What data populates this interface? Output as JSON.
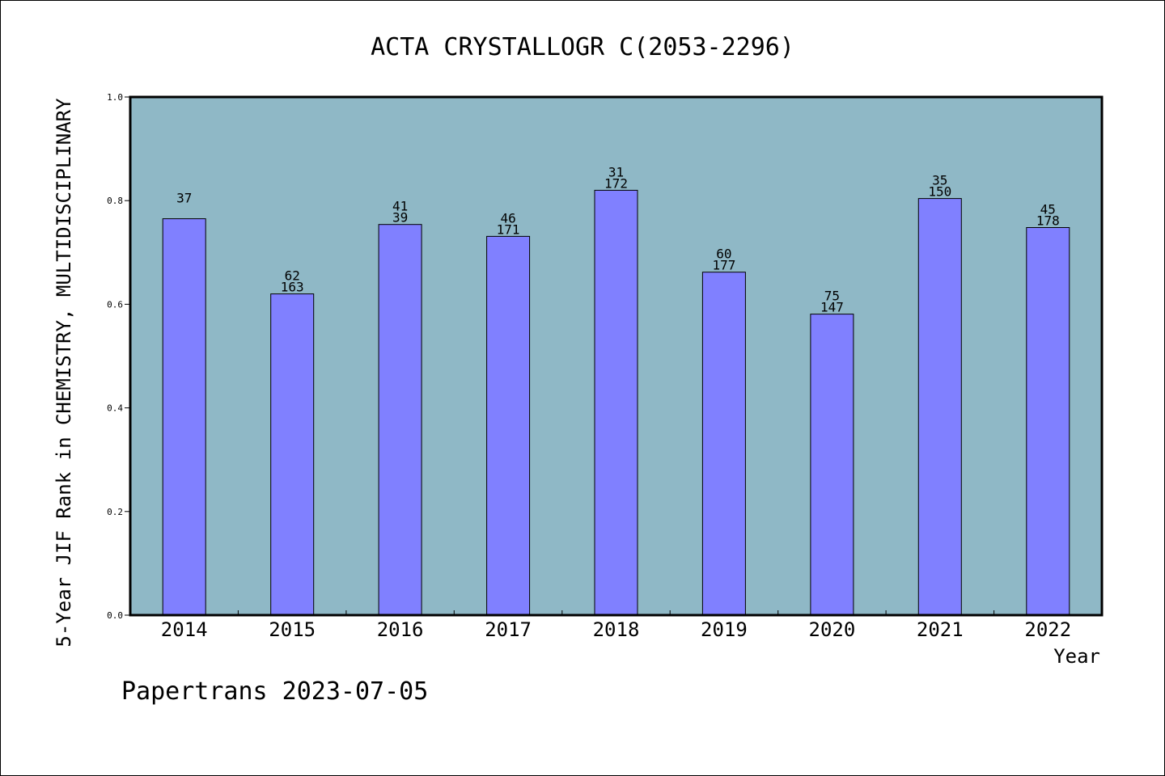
{
  "chart_data": {
    "type": "bar",
    "title": "ACTA CRYSTALLOGR C(2053-2296)",
    "xlabel": "Year",
    "ylabel": "5-Year JIF Rank in CHEMISTRY, MULTIDISCIPLINARY",
    "categories": [
      "2014",
      "2015",
      "2016",
      "2017",
      "2018",
      "2019",
      "2020",
      "2021",
      "2022"
    ],
    "values": [
      0.765,
      0.62,
      0.754,
      0.731,
      0.82,
      0.662,
      0.581,
      0.804,
      0.748
    ],
    "bar_labels": [
      [
        "37"
      ],
      [
        "62",
        "163"
      ],
      [
        "41",
        "39"
      ],
      [
        "46",
        "171"
      ],
      [
        "31",
        "172"
      ],
      [
        "60",
        "177"
      ],
      [
        "75",
        "147"
      ],
      [
        "35",
        "150"
      ],
      [
        "45",
        "178"
      ]
    ],
    "ylim": [
      0,
      1.0
    ],
    "yticks": [
      "0.0",
      "0.2",
      "0.4",
      "0.6",
      "0.8",
      "1.0"
    ],
    "grid": false,
    "legend": "none",
    "plot_background": "#8fb8c6",
    "bar_color": "#8080ff"
  },
  "footer": {
    "text": "Papertrans 2023-07-05"
  }
}
